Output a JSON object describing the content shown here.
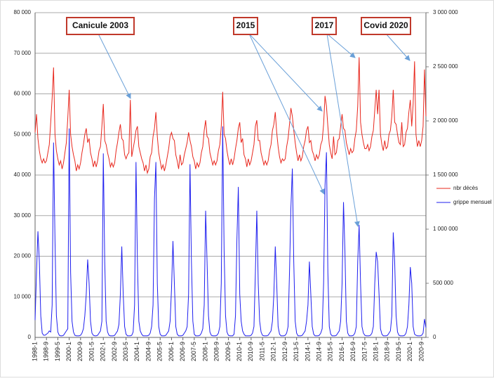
{
  "chart_data": {
    "type": "line",
    "categories": [
      "1998-1",
      null,
      null,
      null,
      null,
      null,
      null,
      null,
      "1998-9",
      null,
      null,
      null,
      null,
      null,
      null,
      null,
      "1999-5",
      null,
      null,
      null,
      null,
      null,
      null,
      null,
      "2000-1",
      null,
      null,
      null,
      null,
      null,
      null,
      null,
      "2000-9",
      null,
      null,
      null,
      null,
      null,
      null,
      null,
      "2001-5",
      null,
      null,
      null,
      null,
      null,
      null,
      null,
      "2002-1",
      null,
      null,
      null,
      null,
      null,
      null,
      null,
      "2002-9",
      null,
      null,
      null,
      null,
      null,
      null,
      null,
      "2003-5",
      null,
      null,
      null,
      null,
      null,
      null,
      null,
      "2004-1",
      null,
      null,
      null,
      null,
      null,
      null,
      null,
      "2004-9",
      null,
      null,
      null,
      null,
      null,
      null,
      null,
      "2005-5",
      null,
      null,
      null,
      null,
      null,
      null,
      null,
      "2006-1",
      null,
      null,
      null,
      null,
      null,
      null,
      null,
      "2006-9",
      null,
      null,
      null,
      null,
      null,
      null,
      null,
      "2007-5",
      null,
      null,
      null,
      null,
      null,
      null,
      null,
      "2008-1",
      null,
      null,
      null,
      null,
      null,
      null,
      null,
      "2008-9",
      null,
      null,
      null,
      null,
      null,
      null,
      null,
      "2009-5",
      null,
      null,
      null,
      null,
      null,
      null,
      null,
      "2010-1",
      null,
      null,
      null,
      null,
      null,
      null,
      null,
      "2010-9",
      null,
      null,
      null,
      null,
      null,
      null,
      null,
      "2011-5",
      null,
      null,
      null,
      null,
      null,
      null,
      null,
      "2012-1",
      null,
      null,
      null,
      null,
      null,
      null,
      null,
      "2012-9",
      null,
      null,
      null,
      null,
      null,
      null,
      null,
      "2013-5",
      null,
      null,
      null,
      null,
      null,
      null,
      null,
      "2014-1",
      null,
      null,
      null,
      null,
      null,
      null,
      null,
      "2014-9",
      null,
      null,
      null,
      null,
      null,
      null,
      null,
      "2015-5",
      null,
      null,
      null,
      null,
      null,
      null,
      null,
      "2016-1",
      null,
      null,
      null,
      null,
      null,
      null,
      null,
      "2016-9",
      null,
      null,
      null,
      null,
      null,
      null,
      null,
      "2017-5",
      null,
      null,
      null,
      null,
      null,
      null,
      null,
      "2018-1",
      null,
      null,
      null,
      null,
      null,
      null,
      null,
      "2018-9",
      null,
      null,
      null,
      null,
      null,
      null,
      null,
      "2019-5",
      null,
      null,
      null,
      null,
      null,
      null,
      null,
      "2020-1",
      null,
      null,
      null,
      null,
      null,
      null,
      null,
      "2020-9",
      null,
      null,
      null
    ],
    "series": [
      {
        "name": "nbr décès",
        "color": "#e8271d",
        "values": [
          50500,
          55000,
          49000,
          46000,
          44000,
          43000,
          44000,
          43000,
          43500,
          45500,
          47500,
          53000,
          59000,
          66500,
          50000,
          46000,
          44000,
          42500,
          43500,
          41500,
          43000,
          45500,
          48000,
          54000,
          61000,
          50000,
          47000,
          45000,
          43500,
          41000,
          42500,
          41500,
          43000,
          45500,
          47500,
          50000,
          51500,
          48000,
          49000,
          45500,
          44000,
          42000,
          43500,
          42000,
          43500,
          46000,
          47000,
          52000,
          57500,
          48500,
          47500,
          45500,
          44000,
          42000,
          43000,
          42000,
          43000,
          46000,
          48000,
          50500,
          52500,
          49000,
          48500,
          45000,
          44000,
          45000,
          45500,
          58500,
          44500,
          46500,
          48500,
          51000,
          52000,
          47000,
          45500,
          44000,
          43000,
          41000,
          42500,
          40500,
          41500,
          44500,
          45500,
          49500,
          51500,
          55500,
          49500,
          45500,
          43500,
          41500,
          42500,
          41000,
          42500,
          44500,
          46500,
          49500,
          50500,
          49000,
          48500,
          45000,
          43500,
          41500,
          45000,
          42500,
          43000,
          45000,
          46500,
          48000,
          50500,
          48500,
          47000,
          44500,
          43500,
          41500,
          43000,
          42000,
          43000,
          45500,
          47000,
          51000,
          53500,
          49500,
          49000,
          45500,
          44000,
          42500,
          43500,
          42500,
          43500,
          46000,
          47500,
          52000,
          60500,
          50000,
          49000,
          46000,
          44000,
          42500,
          44000,
          42500,
          44000,
          46500,
          48500,
          51500,
          53000,
          48000,
          49000,
          45000,
          44000,
          42000,
          44000,
          42500,
          43500,
          45500,
          47500,
          52000,
          53500,
          48500,
          48500,
          45500,
          44000,
          42500,
          43500,
          42500,
          43500,
          46000,
          47500,
          51000,
          52500,
          55500,
          50500,
          47000,
          44500,
          43000,
          44000,
          43500,
          44000,
          47000,
          49000,
          52500,
          56500,
          54500,
          51000,
          48000,
          45500,
          43500,
          45000,
          43500,
          44500,
          47000,
          48500,
          51000,
          52000,
          48000,
          48500,
          46000,
          45000,
          43500,
          45000,
          44000,
          45000,
          47500,
          48500,
          52500,
          59500,
          57000,
          52000,
          47500,
          45500,
          44000,
          49500,
          45000,
          45500,
          48500,
          49000,
          52000,
          55000,
          51500,
          51000,
          48000,
          46500,
          45000,
          46500,
          45500,
          46000,
          49000,
          51000,
          57000,
          69000,
          53000,
          50000,
          48000,
          46500,
          46500,
          47500,
          46000,
          47000,
          49500,
          51000,
          56000,
          61000,
          55000,
          61000,
          50000,
          47500,
          46000,
          48500,
          46500,
          47000,
          50000,
          51000,
          54500,
          61000,
          53000,
          52500,
          50000,
          48000,
          47500,
          53000,
          47000,
          47500,
          50500,
          51500,
          55500,
          58500,
          52000,
          57500,
          68000,
          50000,
          47000,
          48500,
          47000,
          48500,
          52000,
          66000,
          54500
        ]
      },
      {
        "name": "grippe mensuel",
        "color": "#1f1fef",
        "axis": "y2",
        "values": [
          160000,
          600000,
          980000,
          700000,
          200000,
          40000,
          20000,
          20000,
          30000,
          40000,
          60000,
          50000,
          300000,
          1800000,
          900000,
          200000,
          50000,
          20000,
          15000,
          15000,
          20000,
          40000,
          60000,
          80000,
          1930000,
          600000,
          150000,
          50000,
          20000,
          15000,
          15000,
          15000,
          20000,
          40000,
          80000,
          200000,
          400000,
          720000,
          500000,
          150000,
          40000,
          20000,
          15000,
          15000,
          20000,
          40000,
          60000,
          150000,
          1700000,
          700000,
          150000,
          50000,
          20000,
          15000,
          15000,
          15000,
          20000,
          40000,
          60000,
          120000,
          400000,
          840000,
          400000,
          100000,
          30000,
          15000,
          15000,
          15000,
          20000,
          50000,
          300000,
          1620000,
          700000,
          150000,
          60000,
          30000,
          15000,
          15000,
          15000,
          15000,
          20000,
          40000,
          100000,
          300000,
          1280000,
          1620000,
          500000,
          100000,
          30000,
          15000,
          15000,
          15000,
          20000,
          40000,
          60000,
          150000,
          450000,
          890000,
          500000,
          100000,
          30000,
          15000,
          15000,
          15000,
          20000,
          40000,
          60000,
          100000,
          400000,
          1600000,
          700000,
          150000,
          30000,
          15000,
          15000,
          15000,
          20000,
          40000,
          80000,
          300000,
          1170000,
          700000,
          200000,
          50000,
          20000,
          15000,
          15000,
          15000,
          20000,
          40000,
          100000,
          500000,
          1950000,
          800000,
          200000,
          50000,
          20000,
          15000,
          15000,
          15000,
          30000,
          200000,
          900000,
          1390000,
          400000,
          150000,
          60000,
          30000,
          15000,
          15000,
          15000,
          15000,
          20000,
          40000,
          100000,
          600000,
          1170000,
          500000,
          150000,
          50000,
          20000,
          15000,
          15000,
          15000,
          20000,
          40000,
          60000,
          150000,
          400000,
          840000,
          500000,
          100000,
          30000,
          15000,
          15000,
          15000,
          20000,
          40000,
          100000,
          600000,
          1200000,
          1560000,
          700000,
          150000,
          40000,
          15000,
          15000,
          15000,
          20000,
          40000,
          60000,
          150000,
          300000,
          700000,
          400000,
          100000,
          30000,
          15000,
          15000,
          15000,
          20000,
          40000,
          80000,
          500000,
          1400000,
          1710000,
          600000,
          100000,
          30000,
          15000,
          15000,
          15000,
          20000,
          40000,
          60000,
          150000,
          500000,
          1250000,
          800000,
          150000,
          40000,
          15000,
          15000,
          15000,
          20000,
          40000,
          100000,
          700000,
          1040000,
          500000,
          100000,
          40000,
          20000,
          15000,
          15000,
          15000,
          20000,
          40000,
          100000,
          500000,
          790000,
          700000,
          400000,
          80000,
          30000,
          15000,
          15000,
          15000,
          20000,
          40000,
          60000,
          200000,
          970000,
          700000,
          200000,
          50000,
          20000,
          15000,
          15000,
          15000,
          20000,
          40000,
          100000,
          300000,
          650000,
          500000,
          100000,
          30000,
          20000,
          15000,
          15000,
          15000,
          20000,
          40000,
          170000,
          90000
        ]
      }
    ],
    "ylim": [
      0,
      80000
    ],
    "yticks": [
      0,
      {
        "value": 10000,
        "label": "10 000"
      },
      {
        "value": 20000,
        "label": "20 000"
      },
      {
        "value": 30000,
        "label": "30 000"
      },
      {
        "value": 40000,
        "label": "40 000"
      },
      {
        "value": 50000,
        "label": "50 000"
      },
      {
        "value": 60000,
        "label": "60 000"
      },
      {
        "value": 70000,
        "label": "70 000"
      },
      {
        "value": 80000,
        "label": "80 000"
      }
    ],
    "y2lim": [
      0,
      3000000
    ],
    "y2ticks": [
      0,
      {
        "value": 500000,
        "label": "500 000"
      },
      {
        "value": 1000000,
        "label": "1 000 000"
      },
      {
        "value": 1500000,
        "label": "1 500 000"
      },
      {
        "value": 2000000,
        "label": "2 000 000"
      },
      {
        "value": 2500000,
        "label": "2 500 000"
      },
      {
        "value": 3000000,
        "label": "3 000 000"
      }
    ],
    "grid": true,
    "legend": "right",
    "annotations": [
      {
        "text": "Canicule 2003"
      },
      {
        "text": "2015"
      },
      {
        "text": "2017"
      },
      {
        "text": "Covid 2020"
      }
    ]
  }
}
